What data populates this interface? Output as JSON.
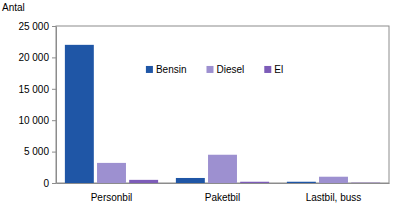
{
  "chart_data": {
    "type": "bar",
    "y_label": "Antal",
    "categories": [
      "Personbil",
      "Paketbil",
      "Lastbil, buss"
    ],
    "series": [
      {
        "name": "Bensin",
        "color": "#1f56a6",
        "values": [
          22000,
          800,
          200
        ]
      },
      {
        "name": "Diesel",
        "color": "#9d90d0",
        "values": [
          3200,
          4500,
          1000
        ]
      },
      {
        "name": "El",
        "color": "#7d5cb8",
        "values": [
          500,
          200,
          50
        ]
      }
    ],
    "ylim": [
      0,
      25000
    ],
    "yticks": [
      0,
      {
        "value": 5000,
        "label": "5 000"
      },
      {
        "value": 10000,
        "label": "10 000"
      },
      {
        "value": 15000,
        "label": "15 000"
      },
      {
        "value": 20000,
        "label": "20 000"
      },
      {
        "value": 25000,
        "label": "25 000"
      }
    ],
    "grid": false,
    "legend": "top"
  }
}
